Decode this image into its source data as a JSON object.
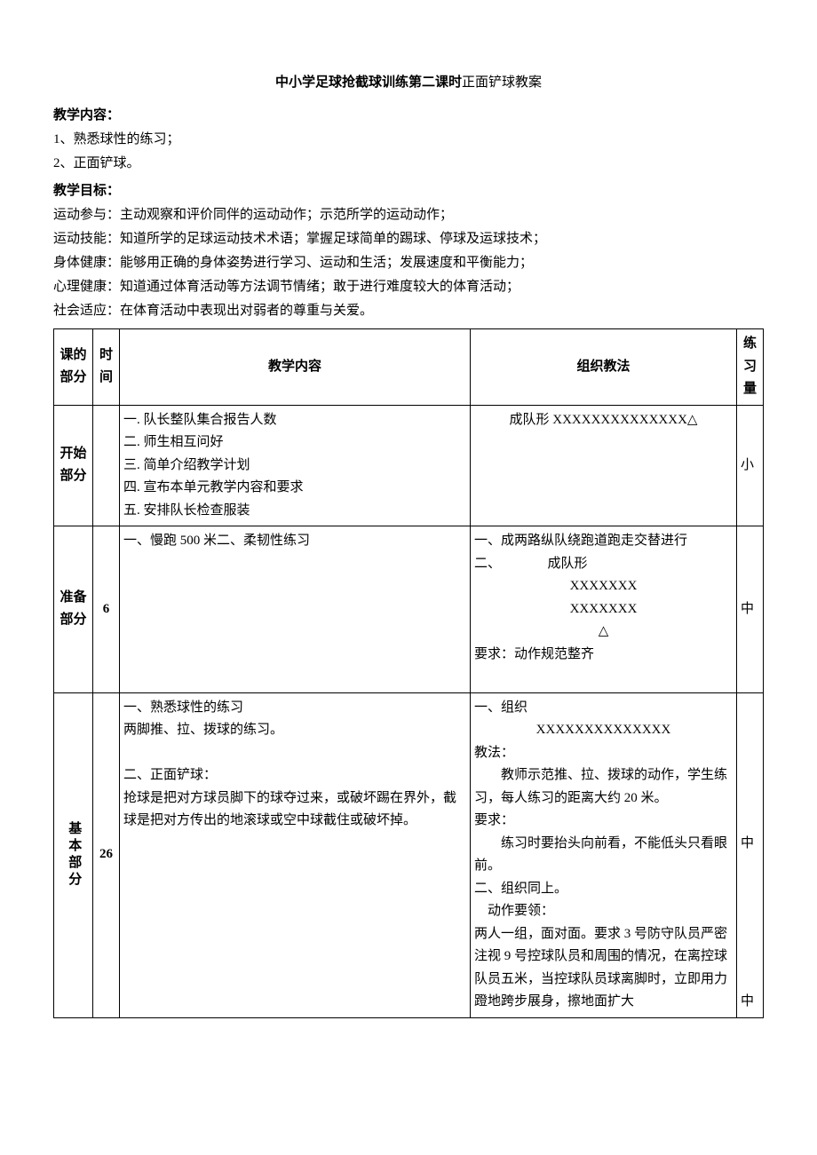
{
  "title_bold": "中小学足球抢截球训练第二课时",
  "title_rest": "正面铲球教案",
  "section_content_label": "教学内容：",
  "content_items": {
    "item1": "1、熟悉球性的练习；",
    "item2": "2、正面铲球。"
  },
  "section_goal_label": "教学目标：",
  "goals": {
    "g1": "运动参与：主动观察和评价同伴的运动动作；示范所学的运动动作；",
    "g2": "运动技能：知道所学的足球运动技术术语；掌握足球简单的踢球、停球及运球技术；",
    "g3": "身体健康：能够用正确的身体姿势进行学习、运动和生活；发展速度和平衡能力；",
    "g4": "心理健康：知道通过体育活动等方法调节情绪；敢于进行难度较大的体育活动；",
    "g5": "社会适应：在体育活动中表现出对弱者的尊重与关爱。"
  },
  "headers": {
    "part": "课的部分",
    "time": "时间",
    "content": "教学内容",
    "method": "组织教法",
    "amount": "练习量"
  },
  "row_start": {
    "part": "开始部分",
    "time": "",
    "content": "一. 队长整队集合报告人数\n二. 师生相互问好\n三. 简单介绍教学计划\n四. 宣布本单元教学内容和要求\n五. 安排队长检查服装",
    "method": "成队形 XXXXXXXXXXXXXX△",
    "amount": "小"
  },
  "row_prep": {
    "part": "准备部分",
    "time": "6",
    "content": "一、慢跑 500 米二、柔韧性练习",
    "method_line1": "一、成两路纵队绕跑道跑走交替进行",
    "method_line2": "二、　　　　成队形",
    "method_x1": "XXXXXXX",
    "method_x2": "XXXXXXX",
    "method_tri": "△",
    "method_req": "要求：动作规范整齐",
    "amount": "中"
  },
  "row_main": {
    "part": "基本部分",
    "time": "26",
    "content_p1": "一、熟悉球性的练习",
    "content_p2": "两脚推、拉、拨球的练习。",
    "content_p3": "二、正面铲球：",
    "content_p4": "抢球是把对方球员脚下的球夺过来，或破坏踢在界外，截球是把对方传出的地滚球或空中球截住或破坏掉。",
    "method_l1": "一、组织",
    "method_x": "XXXXXXXXXXXXXX",
    "method_l2": "教法：",
    "method_l3": "　　教师示范推、拉、拨球的动作，学生练习，每人练习的距离大约 20 米。",
    "method_l4": "要求：",
    "method_l5": "　　练习时要抬头向前看，不能低头只看眼前。",
    "method_l6": "二、组织同上。",
    "method_l7": "　动作要领：",
    "method_l8": "两人一组，面对面。要求 3 号防守队员严密注视 9 号控球队员和周围的情况，在离控球队员五米，当控球队员球离脚时，立即用力蹬地跨步展身，擦地面扩大",
    "amount1": "中",
    "amount2": "中"
  }
}
